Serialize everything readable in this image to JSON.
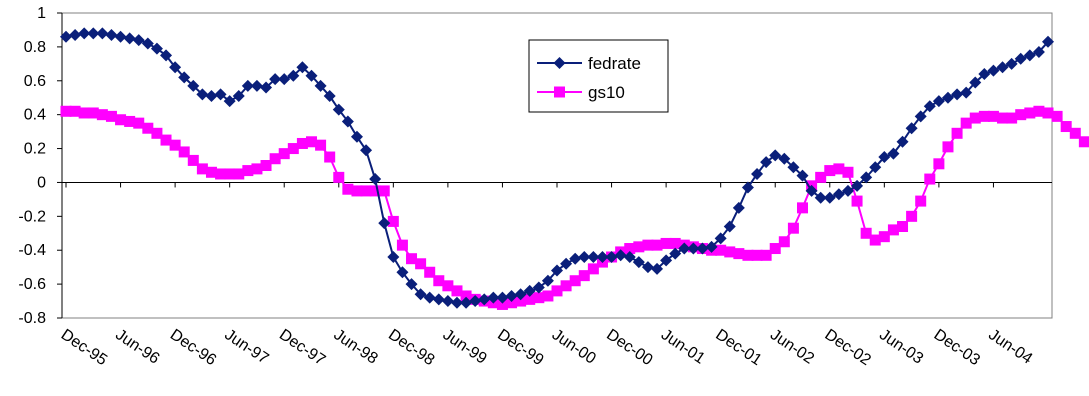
{
  "chart_data": {
    "type": "line",
    "title": "",
    "xlabel": "",
    "ylabel": "",
    "ylim": [
      -0.8,
      1
    ],
    "yticks": [
      "1",
      "0.8",
      "0.6",
      "0.4",
      "0.2",
      "0",
      "-0.2",
      "-0.4",
      "-0.6",
      "-0.8"
    ],
    "xticks": [
      "Dec-95",
      "Jun-96",
      "Dec-96",
      "Jun-97",
      "Dec-97",
      "Jun-98",
      "Dec-98",
      "Jun-99",
      "Dec-99",
      "Jun-00",
      "Dec-00",
      "Jun-01",
      "Dec-01",
      "Jun-02",
      "Dec-02",
      "Jun-03",
      "Dec-03",
      "Jun-04"
    ],
    "x_start": "Dec-95",
    "x_end": "Jun-04",
    "frequency": "monthly",
    "grid": false,
    "legend_position": "top-center",
    "series": [
      {
        "name": "fedrate",
        "color": "#0a1f7a",
        "marker": "diamond",
        "values": [
          0.86,
          0.87,
          0.88,
          0.88,
          0.88,
          0.87,
          0.86,
          0.85,
          0.84,
          0.82,
          0.79,
          0.75,
          0.68,
          0.62,
          0.57,
          0.52,
          0.51,
          0.52,
          0.48,
          0.51,
          0.57,
          0.57,
          0.56,
          0.61,
          0.61,
          0.63,
          0.68,
          0.63,
          0.57,
          0.51,
          0.43,
          0.36,
          0.27,
          0.19,
          0.02,
          -0.24,
          -0.44,
          -0.53,
          -0.6,
          -0.66,
          -0.68,
          -0.69,
          -0.7,
          -0.71,
          -0.71,
          -0.7,
          -0.69,
          -0.68,
          -0.68,
          -0.67,
          -0.66,
          -0.64,
          -0.62,
          -0.58,
          -0.52,
          -0.48,
          -0.45,
          -0.44,
          -0.44,
          -0.44,
          -0.44,
          -0.43,
          -0.44,
          -0.47,
          -0.5,
          -0.51,
          -0.46,
          -0.42,
          -0.39,
          -0.39,
          -0.39,
          -0.38,
          -0.33,
          -0.26,
          -0.15,
          -0.03,
          0.05,
          0.12,
          0.16,
          0.14,
          0.09,
          0.04,
          -0.05,
          -0.09,
          -0.09,
          -0.07,
          -0.05,
          -0.02,
          0.03,
          0.09,
          0.15,
          0.17,
          0.24,
          0.32,
          0.39,
          0.45,
          0.48,
          0.5,
          0.52,
          0.53,
          0.59,
          0.64,
          0.66,
          0.68,
          0.7,
          0.73,
          0.75,
          0.77,
          0.83
        ]
      },
      {
        "name": "gs10",
        "color": "#ff00ff",
        "marker": "square",
        "values": [
          0.42,
          0.42,
          0.41,
          0.41,
          0.4,
          0.39,
          0.37,
          0.36,
          0.35,
          0.32,
          0.29,
          0.25,
          0.22,
          0.18,
          0.13,
          0.08,
          0.06,
          0.05,
          0.05,
          0.05,
          0.07,
          0.08,
          0.1,
          0.14,
          0.17,
          0.2,
          0.23,
          0.24,
          0.22,
          0.15,
          0.03,
          -0.04,
          -0.05,
          -0.05,
          -0.05,
          -0.05,
          -0.23,
          -0.37,
          -0.45,
          -0.48,
          -0.53,
          -0.58,
          -0.61,
          -0.64,
          -0.67,
          -0.69,
          -0.7,
          -0.71,
          -0.72,
          -0.71,
          -0.7,
          -0.69,
          -0.68,
          -0.67,
          -0.64,
          -0.61,
          -0.58,
          -0.55,
          -0.51,
          -0.47,
          -0.44,
          -0.41,
          -0.39,
          -0.38,
          -0.37,
          -0.37,
          -0.36,
          -0.36,
          -0.37,
          -0.38,
          -0.39,
          -0.4,
          -0.4,
          -0.41,
          -0.42,
          -0.43,
          -0.43,
          -0.43,
          -0.39,
          -0.35,
          -0.27,
          -0.15,
          -0.02,
          0.03,
          0.07,
          0.08,
          0.06,
          -0.11,
          -0.3,
          -0.34,
          -0.32,
          -0.28,
          -0.26,
          -0.2,
          -0.11,
          0.02,
          0.11,
          0.21,
          0.29,
          0.35,
          0.38,
          0.39,
          0.39,
          0.38,
          0.38,
          0.4,
          0.41,
          0.42,
          0.41,
          0.39,
          0.33,
          0.29,
          0.24
        ]
      }
    ]
  }
}
